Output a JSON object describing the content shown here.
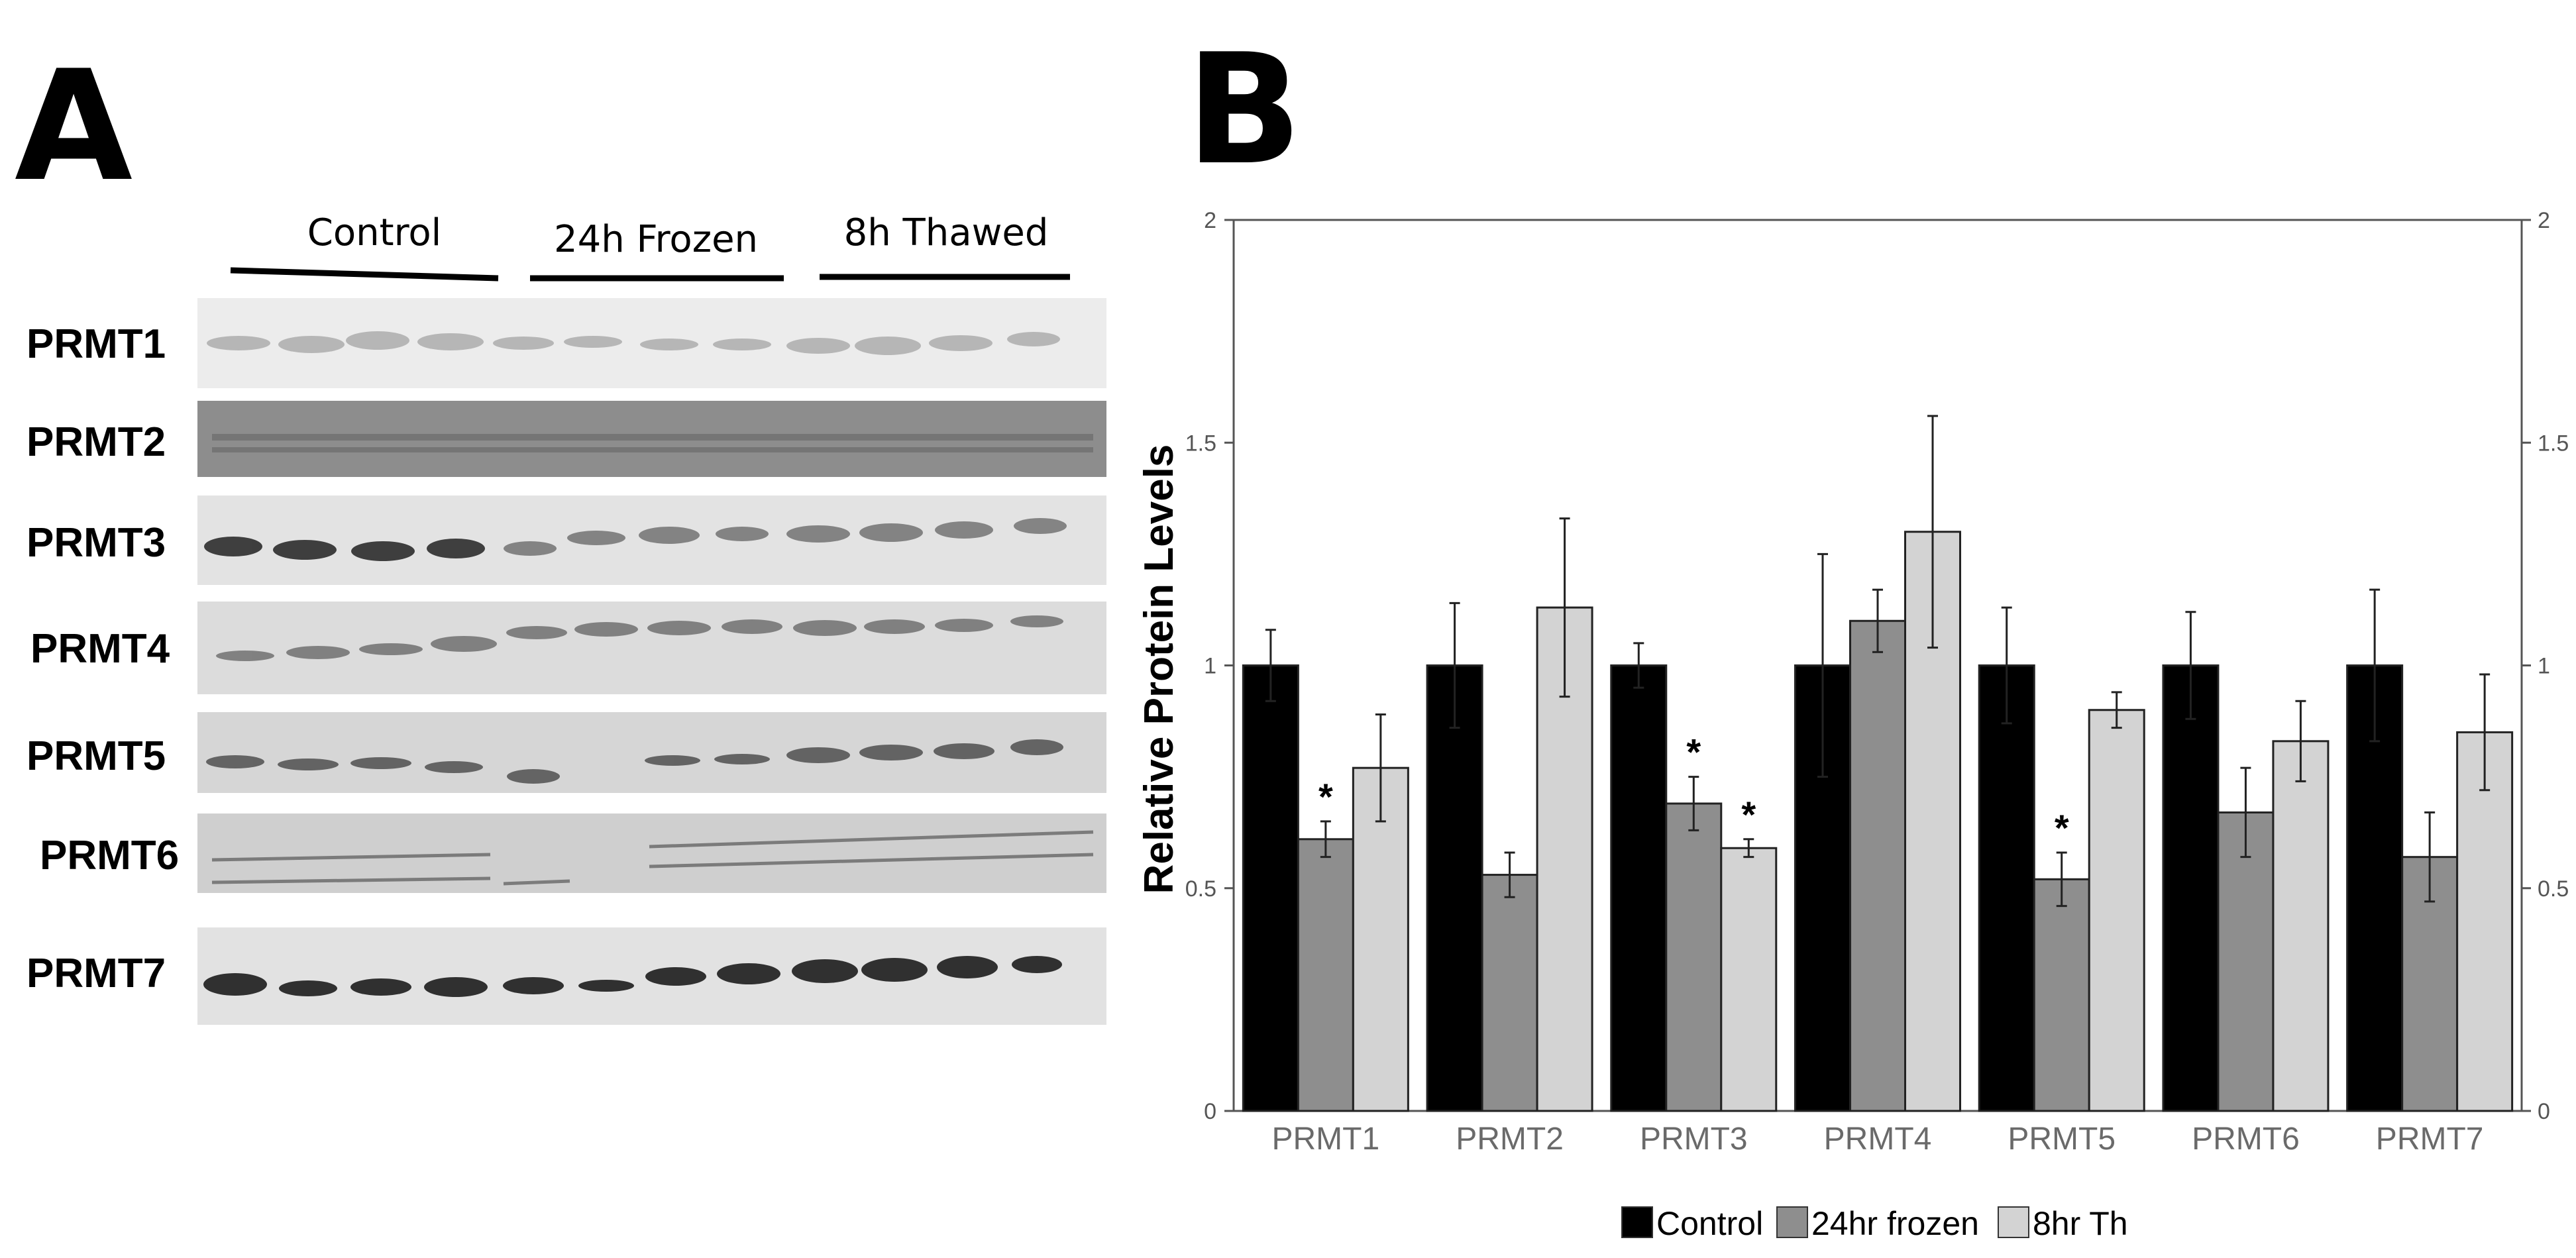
{
  "panel_a": {
    "letter": "A",
    "groups": [
      "Control",
      "24h Frozen",
      "8h Thawed"
    ],
    "rows": [
      "PRMT1",
      "PRMT2",
      "PRMT3",
      "PRMT4",
      "PRMT5",
      "PRMT6",
      "PRMT7"
    ]
  },
  "panel_b": {
    "letter": "B"
  },
  "chart_data": {
    "type": "bar",
    "title": "",
    "xlabel": "",
    "ylabel": "Relative Protein Levels",
    "ylim": [
      0,
      2
    ],
    "yticks": [
      0,
      0.5,
      1,
      1.5,
      2
    ],
    "ytick_labels": [
      "0",
      "0.5",
      "1",
      "1.5",
      "2"
    ],
    "categories": [
      "PRMT1",
      "PRMT2",
      "PRMT3",
      "PRMT4",
      "PRMT5",
      "PRMT6",
      "PRMT7"
    ],
    "series": [
      {
        "name": "Control",
        "color": "#000000",
        "values": [
          1.0,
          1.0,
          1.0,
          1.0,
          1.0,
          1.0,
          1.0
        ],
        "errors": [
          0.08,
          0.14,
          0.05,
          0.25,
          0.13,
          0.12,
          0.17
        ],
        "significant": [
          false,
          false,
          false,
          false,
          false,
          false,
          false
        ]
      },
      {
        "name": "24hr frozen",
        "color": "#8e8e8e",
        "values": [
          0.61,
          0.53,
          0.69,
          1.1,
          0.52,
          0.67,
          0.57
        ],
        "errors": [
          0.04,
          0.05,
          0.06,
          0.07,
          0.06,
          0.1,
          0.1
        ],
        "significant": [
          true,
          false,
          true,
          false,
          true,
          false,
          false
        ]
      },
      {
        "name": "8hr Th",
        "color": "#d3d3d3",
        "values": [
          0.77,
          1.13,
          0.59,
          1.3,
          0.9,
          0.83,
          0.85
        ],
        "errors": [
          0.12,
          0.2,
          0.02,
          0.26,
          0.04,
          0.09,
          0.13
        ],
        "significant": [
          false,
          false,
          true,
          false,
          false,
          false,
          false
        ]
      }
    ],
    "significance_marker": "*",
    "legend": {
      "position": "bottom-center",
      "entries": [
        "Control",
        "24hr frozen",
        "8hr Th"
      ]
    },
    "grid": false
  }
}
